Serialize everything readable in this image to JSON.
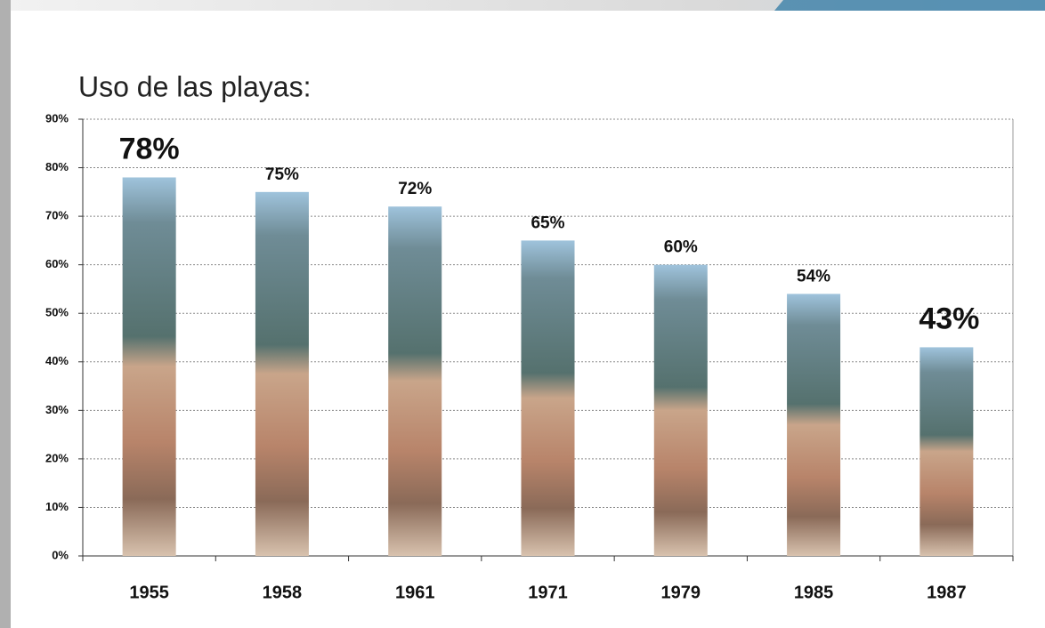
{
  "chart_data": {
    "type": "bar",
    "title": "Uso de las playas:",
    "categories": [
      "1955",
      "1958",
      "1961",
      "1971",
      "1979",
      "1985",
      "1987"
    ],
    "values": [
      78,
      75,
      72,
      65,
      60,
      54,
      43
    ],
    "value_labels": [
      "78%",
      "75%",
      "72%",
      "65%",
      "60%",
      "54%",
      "43%"
    ],
    "ylim": [
      0,
      90
    ],
    "yticks": [
      {
        "value": 0,
        "label": "0%"
      },
      {
        "value": 10,
        "label": "10%"
      },
      {
        "value": 20,
        "label": "20%"
      },
      {
        "value": 30,
        "label": "30%"
      },
      {
        "value": 40,
        "label": "40%"
      },
      {
        "value": 50,
        "label": "50%"
      },
      {
        "value": 60,
        "label": "60%"
      },
      {
        "value": 70,
        "label": "70%"
      },
      {
        "value": 80,
        "label": "80%"
      },
      {
        "value": 90,
        "label": "90%"
      }
    ],
    "grid": true
  }
}
